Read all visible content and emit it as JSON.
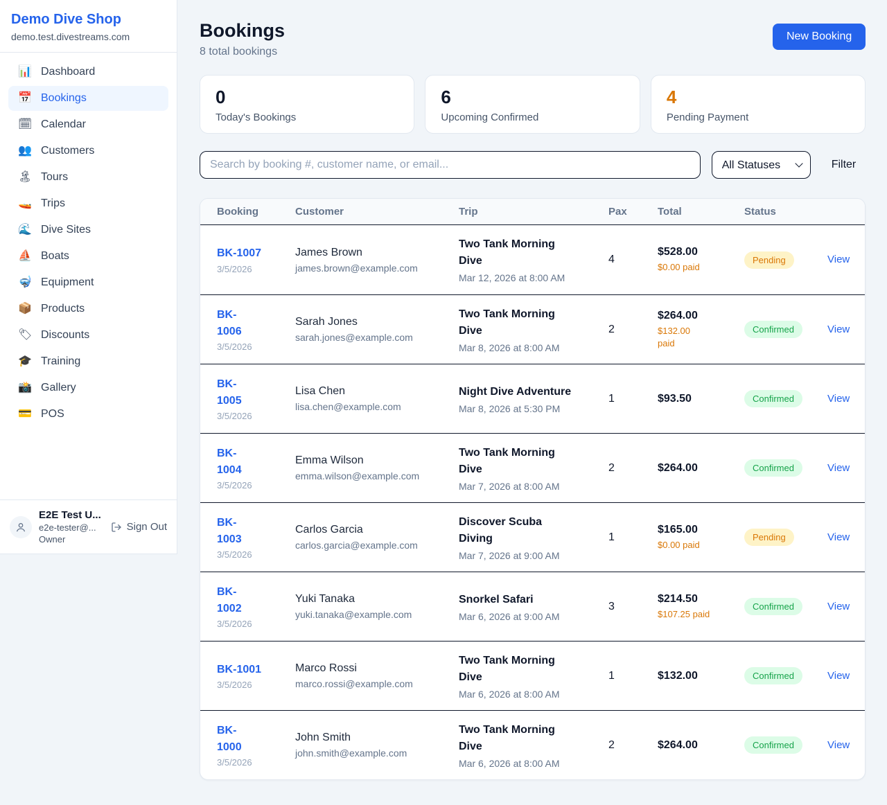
{
  "sidebar": {
    "brand": {
      "name": "Demo Dive Shop",
      "domain": "demo.test.divestreams.com"
    },
    "items": [
      {
        "key": "dashboard",
        "label": "Dashboard",
        "glyph": "📊",
        "icon": "bar-chart-icon",
        "active": false
      },
      {
        "key": "bookings",
        "label": "Bookings",
        "glyph": "📅",
        "icon": "calendar-icon",
        "active": true
      },
      {
        "key": "calendar",
        "label": "Calendar",
        "glyph": "🗓",
        "icon": "spiral-calendar-icon",
        "active": false
      },
      {
        "key": "customers",
        "label": "Customers",
        "glyph": "👥",
        "icon": "people-icon",
        "active": false
      },
      {
        "key": "tours",
        "label": "Tours",
        "glyph": "🏝",
        "icon": "island-icon",
        "active": false
      },
      {
        "key": "trips",
        "label": "Trips",
        "glyph": "🚤",
        "icon": "speedboat-icon",
        "active": false
      },
      {
        "key": "dive-sites",
        "label": "Dive Sites",
        "glyph": "🌊",
        "icon": "wave-icon",
        "active": false
      },
      {
        "key": "boats",
        "label": "Boats",
        "glyph": "⛵",
        "icon": "sailboat-icon",
        "active": false
      },
      {
        "key": "equipment",
        "label": "Equipment",
        "glyph": "🤿",
        "icon": "diving-mask-icon",
        "active": false
      },
      {
        "key": "products",
        "label": "Products",
        "glyph": "📦",
        "icon": "package-icon",
        "active": false
      },
      {
        "key": "discounts",
        "label": "Discounts",
        "glyph": "🏷",
        "icon": "label-tag-icon",
        "active": false
      },
      {
        "key": "training",
        "label": "Training",
        "glyph": "🎓",
        "icon": "graduation-cap-icon",
        "active": false
      },
      {
        "key": "gallery",
        "label": "Gallery",
        "glyph": "📸",
        "icon": "camera-icon",
        "active": false
      },
      {
        "key": "pos",
        "label": "POS",
        "glyph": "💳",
        "icon": "credit-card-icon",
        "active": false
      }
    ],
    "user": {
      "name": "E2E Test U...",
      "email": "e2e-tester@...",
      "role": "Owner",
      "signout_label": "Sign Out"
    }
  },
  "header": {
    "title": "Bookings",
    "subtitle": "8 total bookings",
    "new_booking_label": "New Booking"
  },
  "stats": [
    {
      "value": "0",
      "label": "Today's Bookings",
      "accent": false
    },
    {
      "value": "6",
      "label": "Upcoming Confirmed",
      "accent": false
    },
    {
      "value": "4",
      "label": "Pending Payment",
      "accent": true
    }
  ],
  "controls": {
    "search_placeholder": "Search by booking #, customer name, or email...",
    "status_filter_value": "All Statuses",
    "filter_label": "Filter"
  },
  "table": {
    "columns": [
      "Booking",
      "Customer",
      "Trip",
      "Pax",
      "Total",
      "Status"
    ],
    "rows": [
      {
        "id": "BK-1007",
        "id_wrap": false,
        "date": "3/5/2026",
        "customer_name": "James Brown",
        "customer_email": "james.brown@example.com",
        "trip_name": "Two Tank Morning Dive",
        "trip_wrap": true,
        "trip_datetime": "Mar 12, 2026 at 8:00 AM",
        "pax": "4",
        "total": "$528.00",
        "paid": "$0.00 paid",
        "paid_wrap": false,
        "status": "Pending",
        "action": "View"
      },
      {
        "id": "BK-1006",
        "id_wrap": true,
        "date": "3/5/2026",
        "customer_name": "Sarah Jones",
        "customer_email": "sarah.jones@example.com",
        "trip_name": "Two Tank Morning Dive",
        "trip_wrap": true,
        "trip_datetime": "Mar 8, 2026 at 8:00 AM",
        "pax": "2",
        "total": "$264.00",
        "paid": "$132.00 paid",
        "paid_wrap": true,
        "status": "Confirmed",
        "action": "View"
      },
      {
        "id": "BK-1005",
        "id_wrap": true,
        "date": "3/5/2026",
        "customer_name": "Lisa Chen",
        "customer_email": "lisa.chen@example.com",
        "trip_name": "Night Dive Adventure",
        "trip_wrap": false,
        "trip_datetime": "Mar 8, 2026 at 5:30 PM",
        "pax": "1",
        "total": "$93.50",
        "paid": null,
        "paid_wrap": false,
        "status": "Confirmed",
        "action": "View"
      },
      {
        "id": "BK-1004",
        "id_wrap": true,
        "date": "3/5/2026",
        "customer_name": "Emma Wilson",
        "customer_email": "emma.wilson@example.com",
        "trip_name": "Two Tank Morning Dive",
        "trip_wrap": true,
        "trip_datetime": "Mar 7, 2026 at 8:00 AM",
        "pax": "2",
        "total": "$264.00",
        "paid": null,
        "paid_wrap": false,
        "status": "Confirmed",
        "action": "View"
      },
      {
        "id": "BK-1003",
        "id_wrap": true,
        "date": "3/5/2026",
        "customer_name": "Carlos Garcia",
        "customer_email": "carlos.garcia@example.com",
        "trip_name": "Discover Scuba Diving",
        "trip_wrap": true,
        "trip_datetime": "Mar 7, 2026 at 9:00 AM",
        "pax": "1",
        "total": "$165.00",
        "paid": "$0.00 paid",
        "paid_wrap": false,
        "status": "Pending",
        "action": "View"
      },
      {
        "id": "BK-1002",
        "id_wrap": true,
        "date": "3/5/2026",
        "customer_name": "Yuki Tanaka",
        "customer_email": "yuki.tanaka@example.com",
        "trip_name": "Snorkel Safari",
        "trip_wrap": false,
        "trip_datetime": "Mar 6, 2026 at 9:00 AM",
        "pax": "3",
        "total": "$214.50",
        "paid": "$107.25 paid",
        "paid_wrap": false,
        "status": "Confirmed",
        "action": "View"
      },
      {
        "id": "BK-1001",
        "id_wrap": false,
        "date": "3/5/2026",
        "customer_name": "Marco Rossi",
        "customer_email": "marco.rossi@example.com",
        "trip_name": "Two Tank Morning Dive",
        "trip_wrap": true,
        "trip_datetime": "Mar 6, 2026 at 8:00 AM",
        "pax": "1",
        "total": "$132.00",
        "paid": null,
        "paid_wrap": false,
        "status": "Confirmed",
        "action": "View"
      },
      {
        "id": "BK-1000",
        "id_wrap": true,
        "date": "3/5/2026",
        "customer_name": "John Smith",
        "customer_email": "john.smith@example.com",
        "trip_name": "Two Tank Morning Dive",
        "trip_wrap": true,
        "trip_datetime": "Mar 6, 2026 at 8:00 AM",
        "pax": "2",
        "total": "$264.00",
        "paid": null,
        "paid_wrap": false,
        "status": "Confirmed",
        "action": "View"
      }
    ]
  },
  "colors": {
    "accent_blue": "#2563eb",
    "accent_orange": "#d97706",
    "confirmed_green": "#16a34a",
    "confirmed_bg": "#dcfce7",
    "pending_bg": "#fef3c7"
  }
}
